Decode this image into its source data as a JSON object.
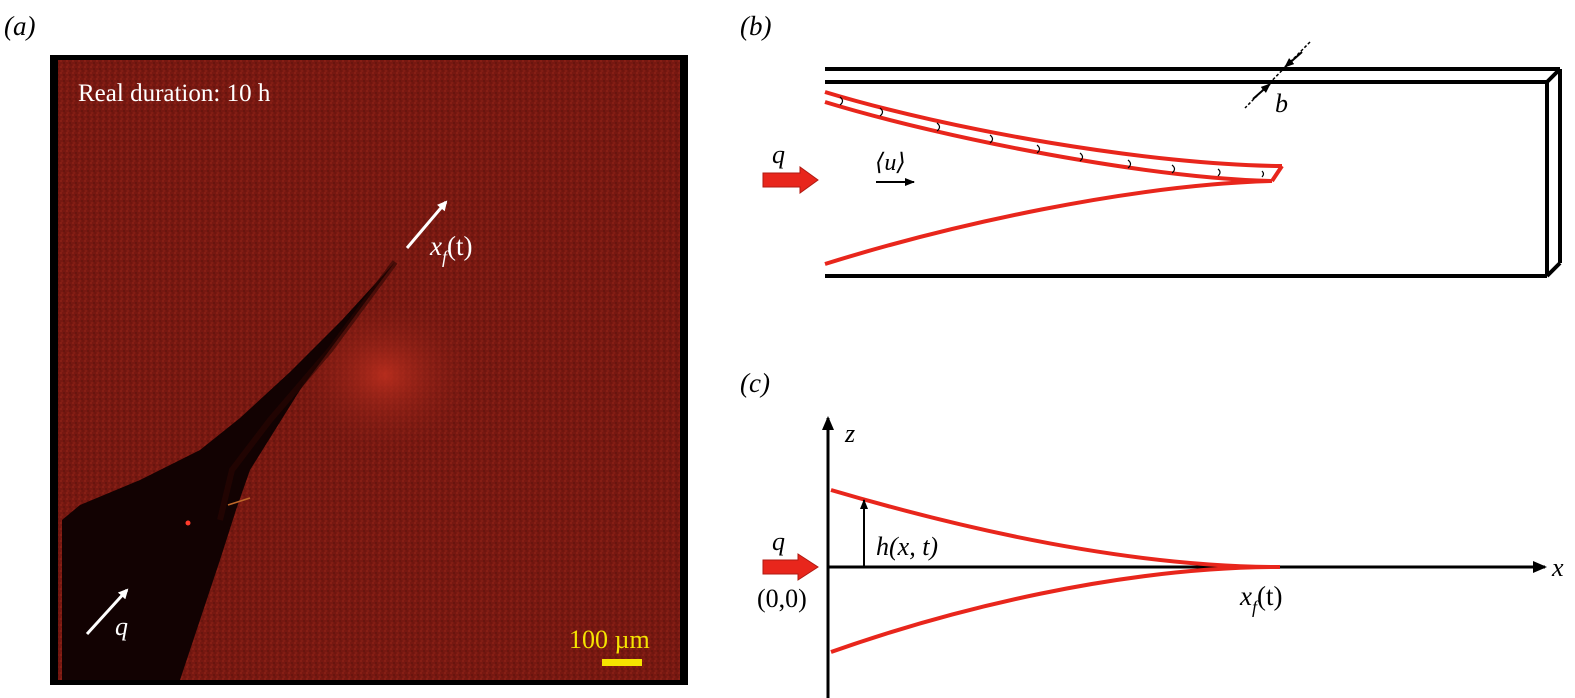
{
  "panel_a": {
    "label": "(a)",
    "duration_text": "Real duration: 10 h",
    "front_label_x": "x",
    "front_label_sub": "f",
    "front_label_arg": "(t)",
    "flow_label": "q",
    "scale_bar_text": "100 µm",
    "colors": {
      "background": "#7a1a12",
      "scale": "#f5e400",
      "arrow": "#ffffff"
    }
  },
  "panel_b": {
    "label": "(b)",
    "flow_label": "q",
    "velocity_label": "⟨u⟩",
    "gap_label": "b",
    "colors": {
      "crack": "#e8261c",
      "wall": "#000000"
    }
  },
  "panel_c": {
    "label": "(c)",
    "z_axis_label": "z",
    "x_axis_label": "x",
    "flow_label": "q",
    "origin_label": "(0,0)",
    "height_label": "h(x, t)",
    "front_label_x": "x",
    "front_label_sub": "f",
    "front_label_arg": "(t)"
  }
}
